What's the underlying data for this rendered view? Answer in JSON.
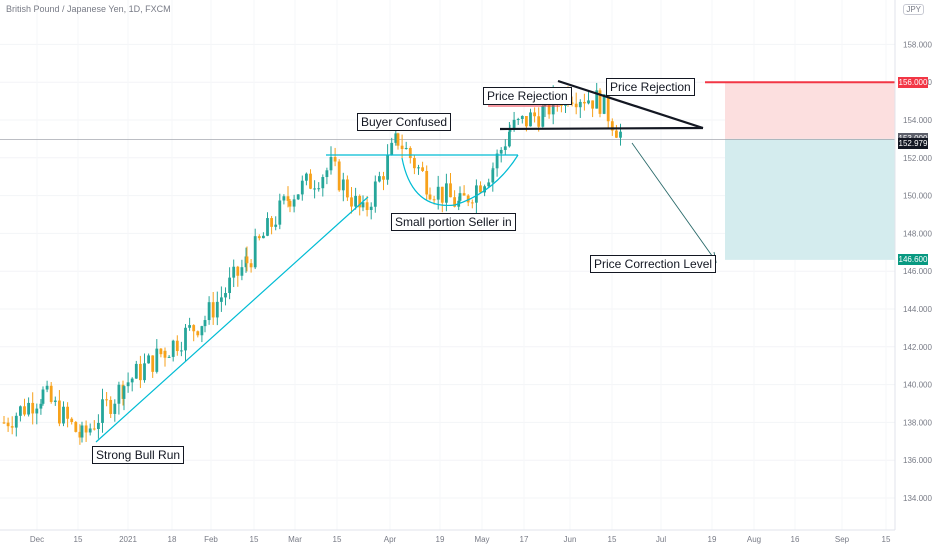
{
  "header": {
    "symbol_title": "British Pound / Japanese Yen, 1D, FXCM",
    "currency": "JPY"
  },
  "colors": {
    "bull": "#26a69a",
    "bear": "#f7a21b",
    "trend": "#00bcd4",
    "stop": "#f23645",
    "target": "#089981",
    "black": "#131722"
  },
  "chart_data": {
    "type": "candlestick",
    "title": "British Pound / Japanese Yen, 1D, FXCM",
    "ylim": [
      132.6,
      161.2
    ],
    "y_ticks": [
      "134.000",
      "136.000",
      "138.000",
      "140.000",
      "142.000",
      "144.000",
      "146.000",
      "148.000",
      "150.000",
      "152.000",
      "154.000",
      "156.000",
      "158.000"
    ],
    "x_ticks": [
      "Dec",
      "15",
      "2021",
      "18",
      "Feb",
      "15",
      "Mar",
      "15",
      "Apr",
      "19",
      "May",
      "17",
      "Jun",
      "15",
      "Jul",
      "19",
      "Aug",
      "16",
      "Sep",
      "15"
    ],
    "price_tags": [
      {
        "label": "156.000",
        "value": 156.0,
        "kind": "stop"
      },
      {
        "label": "153.000",
        "value": 153.0,
        "kind": "entry"
      },
      {
        "label": "152.979",
        "value": 152.979,
        "kind": "last"
      },
      {
        "label": "146.600",
        "value": 146.6,
        "kind": "target"
      }
    ],
    "annotations": [
      {
        "text": "Strong Bull Run",
        "price": 136.8
      },
      {
        "text": "Buyer Confused",
        "price": 153.7
      },
      {
        "text": "Small portion Seller in",
        "price": 149.2
      },
      {
        "text": "Price Rejection",
        "price": 155.1
      },
      {
        "text": "Price Rejection",
        "price": 155.7
      },
      {
        "text": "Price Correction Level",
        "price": 146.5
      }
    ],
    "ohlc_waypoints": [
      {
        "date": "Dec 1",
        "close": 138.0
      },
      {
        "date": "Dec 10",
        "close": 139.5
      },
      {
        "date": "Dec 21",
        "close": 137.2
      },
      {
        "date": "Jan 4",
        "close": 140.0
      },
      {
        "date": "Jan 18",
        "close": 141.8
      },
      {
        "date": "Feb 1",
        "close": 143.5
      },
      {
        "date": "Feb 15",
        "close": 146.5
      },
      {
        "date": "Mar 1",
        "close": 150.0
      },
      {
        "date": "Mar 15",
        "close": 151.5
      },
      {
        "date": "Mar 25",
        "close": 149.0
      },
      {
        "date": "Apr 2",
        "close": 153.0
      },
      {
        "date": "Apr 12",
        "close": 150.5
      },
      {
        "date": "Apr 22",
        "close": 149.5
      },
      {
        "date": "May 3",
        "close": 151.5
      },
      {
        "date": "May 11",
        "close": 153.5
      },
      {
        "date": "May 25",
        "close": 154.5
      },
      {
        "date": "Jun 1",
        "close": 155.5
      },
      {
        "date": "Jun 11",
        "close": 155.0
      },
      {
        "date": "Jun 18",
        "close": 153.0
      }
    ]
  }
}
